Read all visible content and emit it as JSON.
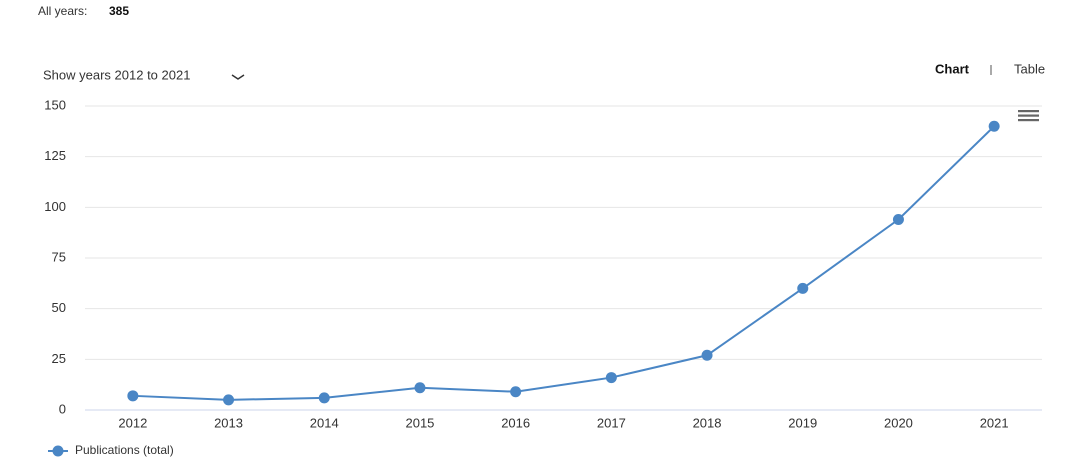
{
  "summary": {
    "label": "All years:",
    "total": 385
  },
  "controls": {
    "range": "Show years 2012 to 2021",
    "tabs": [
      "Chart",
      "Table"
    ]
  },
  "chart_data": {
    "type": "line",
    "categories": [
      "2012",
      "2013",
      "2014",
      "2015",
      "2016",
      "2017",
      "2018",
      "2019",
      "2020",
      "2021"
    ],
    "series": [
      {
        "name": "Publications (total)",
        "color": "#4a86c5",
        "values": [
          7,
          5,
          6,
          11,
          9,
          16,
          27,
          60,
          94,
          140
        ]
      }
    ],
    "ylim": [
      0,
      150
    ],
    "yticks": [
      0,
      25,
      50,
      75,
      100,
      125,
      150
    ],
    "grid": true,
    "legend": "bottom-left"
  }
}
